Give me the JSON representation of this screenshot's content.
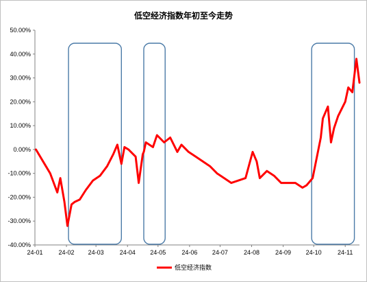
{
  "chart_data": {
    "type": "line",
    "title": "低空经济指数年初至今走势",
    "series": [
      {
        "name": "低空经济指数",
        "color": "#ff0000",
        "x": [
          "2024-01-02",
          "2024-01-09",
          "2024-01-16",
          "2024-01-23",
          "2024-01-26",
          "2024-01-30",
          "2024-02-02",
          "2024-02-06",
          "2024-02-09",
          "2024-02-14",
          "2024-02-20",
          "2024-02-27",
          "2024-03-05",
          "2024-03-12",
          "2024-03-18",
          "2024-03-22",
          "2024-03-26",
          "2024-03-29",
          "2024-04-02",
          "2024-04-09",
          "2024-04-12",
          "2024-04-16",
          "2024-04-17",
          "2024-04-19",
          "2024-04-26",
          "2024-04-30",
          "2024-05-07",
          "2024-05-13",
          "2024-05-20",
          "2024-05-24",
          "2024-05-31",
          "2024-06-07",
          "2024-06-14",
          "2024-06-21",
          "2024-06-28",
          "2024-07-05",
          "2024-07-12",
          "2024-07-19",
          "2024-07-26",
          "2024-08-02",
          "2024-08-06",
          "2024-08-09",
          "2024-08-16",
          "2024-08-23",
          "2024-08-30",
          "2024-09-06",
          "2024-09-13",
          "2024-09-20",
          "2024-09-24",
          "2024-09-30",
          "2024-10-08",
          "2024-10-10",
          "2024-10-15",
          "2024-10-18",
          "2024-10-21",
          "2024-10-25",
          "2024-11-01",
          "2024-11-04",
          "2024-11-08",
          "2024-11-12",
          "2024-11-15"
        ],
        "y": [
          0,
          -5,
          -10,
          -18,
          -12,
          -22,
          -32,
          -23,
          -22,
          -21,
          -17,
          -13,
          -11,
          -7,
          -2,
          2,
          -6,
          1,
          0,
          -3,
          -14,
          -2,
          -1,
          3,
          1,
          6,
          3,
          5,
          -1,
          2,
          -1,
          -3,
          -5,
          -7,
          -10,
          -12,
          -14,
          -13,
          -12,
          -1,
          -5,
          -12,
          -9,
          -11,
          -14,
          -14,
          -14,
          -16,
          -15,
          -12,
          5,
          13,
          18,
          3,
          9,
          14,
          20,
          26,
          24,
          38,
          28
        ]
      }
    ],
    "yticks": [
      "50.00%",
      "40.00%",
      "30.00%",
      "20.00%",
      "10.00%",
      "0.00%",
      "-10.00%",
      "-20.00%",
      "-30.00%",
      "-40.00%"
    ],
    "xticks": [
      "24-01",
      "24-02",
      "24-03",
      "24-04",
      "24-05",
      "24-06",
      "24-07",
      "24-08",
      "24-09",
      "24-10",
      "24-11"
    ],
    "ylim": [
      -40,
      50
    ],
    "xlim": [
      "2024-01-01",
      "2024-11-15"
    ],
    "grid": false,
    "legend": "bottom",
    "highlight_windows": [
      {
        "start": "2024-02-03",
        "end": "2024-03-26",
        "color": "#4a7aa7"
      },
      {
        "start": "2024-04-17",
        "end": "2024-05-08",
        "color": "#4a7aa7"
      },
      {
        "start": "2024-09-29",
        "end": "2024-11-10",
        "color": "#4a7aa7"
      }
    ]
  }
}
